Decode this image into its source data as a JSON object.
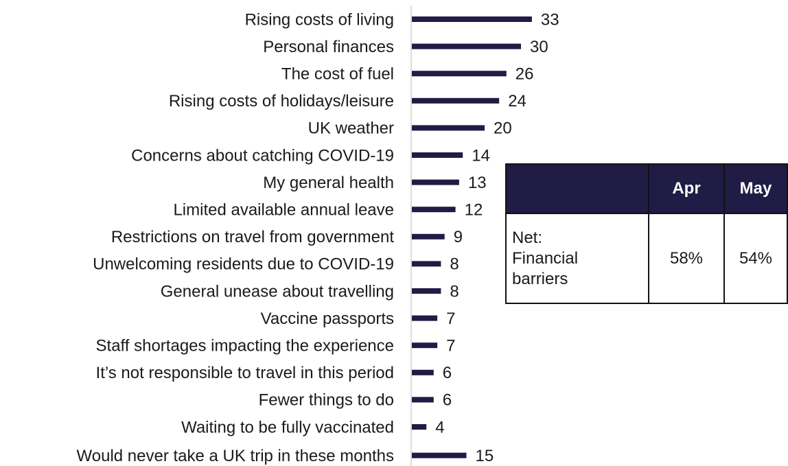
{
  "chart_data": {
    "type": "bar",
    "categories": [
      "Rising costs of living",
      "Personal finances",
      "The cost of fuel",
      "Rising costs of holidays/leisure",
      "UK weather",
      "Concerns about catching COVID-19",
      "My general health",
      "Limited available annual leave",
      "Restrictions on travel from government",
      "Unwelcoming residents due to COVID-19",
      "General unease about travelling",
      "Vaccine passports",
      "Staff shortages impacting the experience",
      "It’s not responsible to travel in this period",
      "Fewer things to do",
      "Waiting to be fully vaccinated",
      "Would never take a UK trip in these months"
    ],
    "values": [
      33,
      30,
      26,
      24,
      20,
      14,
      13,
      12,
      9,
      8,
      8,
      7,
      7,
      6,
      6,
      4,
      15
    ],
    "color": "#201c45"
  },
  "table": {
    "columns": [
      "Apr",
      "May"
    ],
    "rows": [
      {
        "label": "Net: Financial barriers",
        "values": [
          "58%",
          "54%"
        ]
      }
    ]
  }
}
